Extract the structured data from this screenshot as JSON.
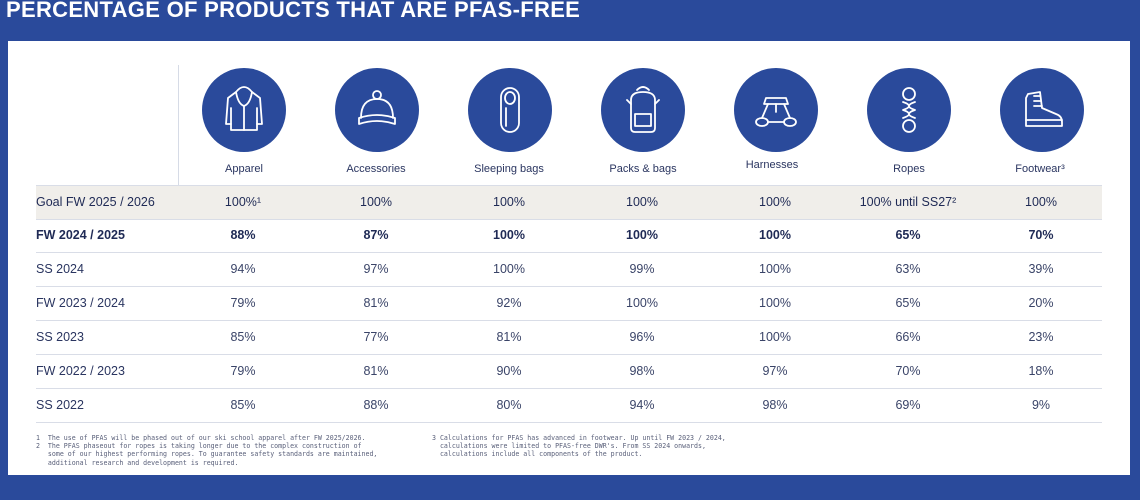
{
  "title": "PERCENTAGE OF PRODUCTS THAT ARE PFAS-FREE",
  "colors": {
    "brand_blue": "#2a4a9b",
    "goal_row_bg": "#f0eeea",
    "text": "#2a3560"
  },
  "categories": [
    {
      "label": "Apparel",
      "icon": "hoodie-icon"
    },
    {
      "label": "Accessories",
      "icon": "beanie-icon"
    },
    {
      "label": "Sleeping bags",
      "icon": "sleeping-bag-icon"
    },
    {
      "label": "Packs & bags",
      "icon": "backpack-icon"
    },
    {
      "label": "Harnesses",
      "icon": "harness-icon"
    },
    {
      "label": "Ropes",
      "icon": "rope-icon"
    },
    {
      "label": "Footwear³",
      "icon": "boot-icon"
    }
  ],
  "rows": [
    {
      "label": "Goal FW 2025 / 2026",
      "values": [
        "100%¹",
        "100%",
        "100%",
        "100%",
        "100%",
        "100% until SS27²",
        "100%"
      ]
    },
    {
      "label": "FW 2024 / 2025",
      "values": [
        "88%",
        "87%",
        "100%",
        "100%",
        "100%",
        "65%",
        "70%"
      ]
    },
    {
      "label": "SS 2024",
      "values": [
        "94%",
        "97%",
        "100%",
        "99%",
        "100%",
        "63%",
        "39%"
      ]
    },
    {
      "label": "FW 2023 / 2024",
      "values": [
        "79%",
        "81%",
        "92%",
        "100%",
        "100%",
        "65%",
        "20%"
      ]
    },
    {
      "label": "SS 2023",
      "values": [
        "85%",
        "77%",
        "81%",
        "96%",
        "100%",
        "66%",
        "23%"
      ]
    },
    {
      "label": "FW 2022 / 2023",
      "values": [
        "79%",
        "81%",
        "90%",
        "98%",
        "97%",
        "70%",
        "18%"
      ]
    },
    {
      "label": "SS 2022",
      "values": [
        "85%",
        "88%",
        "80%",
        "94%",
        "98%",
        "69%",
        "9%"
      ]
    }
  ],
  "footnotes": {
    "left": "1  The use of PFAS will be phased out of our ski school apparel after FW 2025/2026.\n2  The PFAS phaseout for ropes is taking longer due to the complex construction of\n   some of our highest performing ropes. To guarantee safety standards are maintained,\n   additional research and development is required.",
    "right": "3 Calculations for PFAS has advanced in footwear. Up until FW 2023 / 2024,\n  calculations were limited to PFAS-free DWR's. From SS 2024 onwards,\n  calculations include all components of the product."
  },
  "chart_data": {
    "type": "table",
    "title": "PERCENTAGE OF PRODUCTS THAT ARE PFAS-FREE",
    "categories": [
      "Apparel",
      "Accessories",
      "Sleeping bags",
      "Packs & bags",
      "Harnesses",
      "Ropes",
      "Footwear³"
    ],
    "series": [
      {
        "name": "Goal FW 2025 / 2026",
        "values": [
          "100%¹",
          "100%",
          "100%",
          "100%",
          "100%",
          "100% until SS27²",
          "100%"
        ]
      },
      {
        "name": "FW 2024 / 2025",
        "values": [
          88,
          87,
          100,
          100,
          100,
          65,
          70
        ]
      },
      {
        "name": "SS 2024",
        "values": [
          94,
          97,
          100,
          99,
          100,
          63,
          39
        ]
      },
      {
        "name": "FW 2023 / 2024",
        "values": [
          79,
          81,
          92,
          100,
          100,
          65,
          20
        ]
      },
      {
        "name": "SS 2023",
        "values": [
          85,
          77,
          81,
          96,
          100,
          66,
          23
        ]
      },
      {
        "name": "FW 2022 / 2023",
        "values": [
          79,
          81,
          90,
          98,
          97,
          70,
          18
        ]
      },
      {
        "name": "SS 2022",
        "values": [
          85,
          88,
          80,
          94,
          98,
          69,
          9
        ]
      }
    ]
  }
}
